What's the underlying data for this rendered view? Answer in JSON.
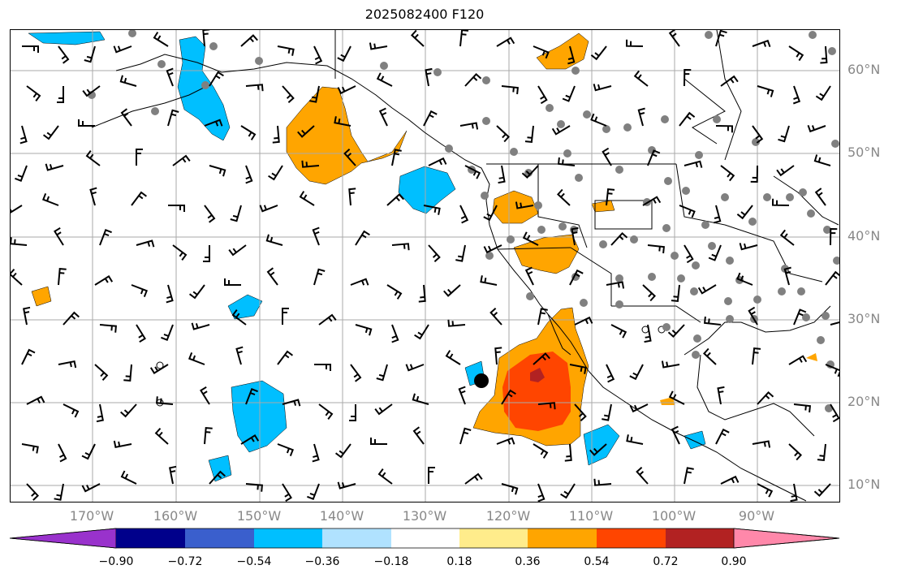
{
  "title": "2025082400 F120",
  "lat_labels": [
    "60°N",
    "50°N",
    "40°N",
    "30°N",
    "20°N",
    "10°N"
  ],
  "lon_labels": [
    "170°W",
    "160°W",
    "150°W",
    "140°W",
    "130°W",
    "120°W",
    "110°W",
    "100°W",
    "90°W"
  ],
  "colorbar": {
    "ticks": [
      "−0.90",
      "−0.72",
      "−0.54",
      "−0.36",
      "−0.18",
      "0.18",
      "0.36",
      "0.54",
      "0.72",
      "0.90"
    ],
    "colors": [
      "#9932CC",
      "#00008B",
      "#3A5FCD",
      "#00BFFF",
      "#B0E2FF",
      "#FFFFFF",
      "#FFEC8B",
      "#FFA500",
      "#FF4500",
      "#B22222",
      "#FF88AA"
    ]
  },
  "colors": {
    "grid": "#aaaaaa",
    "coast": "#000000",
    "station": "#808080",
    "neg_fill": "#00BFFF",
    "pos_fill": "#FFA500",
    "strong_fill": "#FF4500",
    "max_fill": "#B22222"
  }
}
